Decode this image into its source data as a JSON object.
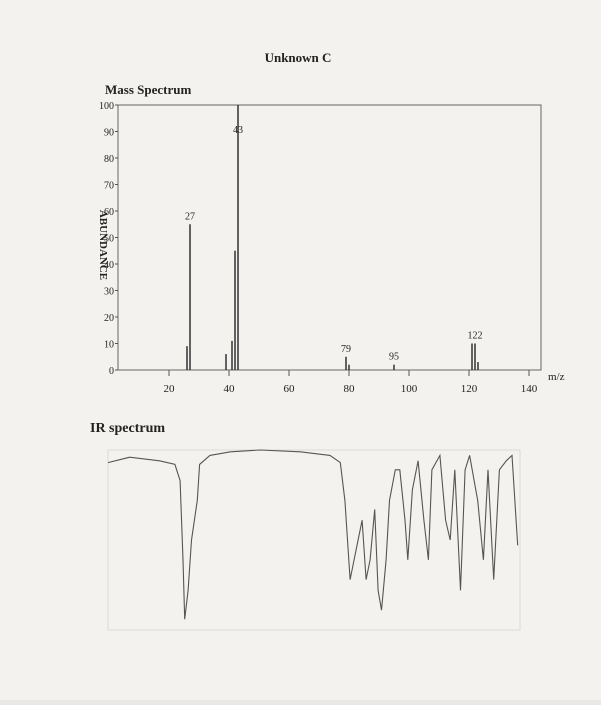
{
  "title": "Unknown C",
  "chart_data": [
    {
      "type": "bar",
      "title": "Mass Spectrum",
      "y_label": "ABUNDANCE",
      "x_label": "m/z",
      "x": [
        26,
        27,
        39,
        41,
        42,
        43,
        79,
        80,
        95,
        121,
        122,
        123
      ],
      "values": [
        9,
        55,
        6,
        11,
        45,
        100,
        5,
        2,
        2,
        10,
        10,
        3
      ],
      "peak_labels": [
        null,
        "27",
        null,
        null,
        null,
        "43",
        "79",
        null,
        "95",
        null,
        "122",
        null
      ],
      "color": "#333333",
      "xlim": [
        3,
        144
      ],
      "ylim": [
        0,
        100
      ],
      "xticks": [
        20,
        40,
        60,
        80,
        100,
        120,
        140
      ],
      "yticks": [
        0,
        10,
        20,
        30,
        40,
        50,
        60,
        70,
        80,
        90,
        100
      ]
    },
    {
      "type": "line",
      "title": "IR spectrum",
      "color": "#555555",
      "x": [
        4000,
        3810,
        3550,
        3415,
        3370,
        3345,
        3330,
        3300,
        3270,
        3220,
        3200,
        3110,
        2930,
        2670,
        2320,
        2060,
        1970,
        1930,
        1885,
        1850,
        1815,
        1780,
        1745,
        1710,
        1670,
        1640,
        1610,
        1570,
        1540,
        1490,
        1450,
        1405,
        1380,
        1340,
        1290,
        1240,
        1200,
        1170,
        1100,
        1050,
        1010,
        970,
        920,
        880,
        840,
        770,
        720,
        680,
        630,
        580,
        520,
        470,
        420
      ],
      "values": [
        93,
        96,
        94,
        92,
        83,
        39,
        6,
        22,
        50,
        72,
        92,
        97,
        99,
        100,
        99,
        97,
        93,
        72,
        28,
        39,
        50,
        61,
        28,
        39,
        67,
        22,
        11,
        39,
        72,
        89,
        89,
        61,
        39,
        78,
        94,
        61,
        39,
        89,
        97,
        61,
        50,
        89,
        22,
        89,
        97,
        72,
        39,
        89,
        28,
        89,
        94,
        97,
        47
      ],
      "xlim": [
        4000,
        400
      ],
      "ylim": [
        0,
        100
      ]
    }
  ]
}
